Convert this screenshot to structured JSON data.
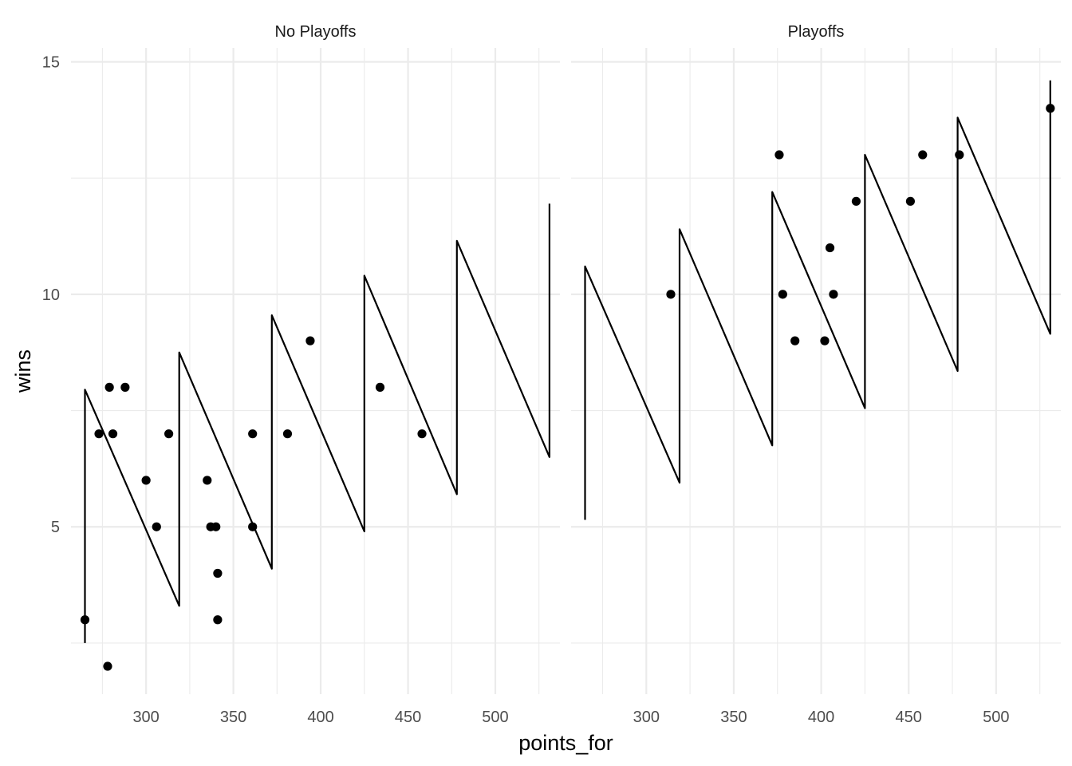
{
  "chart_data": {
    "type": "scatter",
    "xlabel": "points_for",
    "ylabel": "wins",
    "xlim": [
      257,
      537
    ],
    "ylim": [
      1.4,
      15.3
    ],
    "x_major_ticks": [
      300,
      350,
      400,
      450,
      500
    ],
    "x_minor_ticks": [
      275,
      325,
      375,
      425,
      475,
      525
    ],
    "y_major_ticks": [
      5,
      10,
      15
    ],
    "y_minor_ticks": [
      2.5,
      7.5,
      12.5
    ],
    "x_tick_labels": [
      "300",
      "350",
      "400",
      "450",
      "500"
    ],
    "y_tick_labels": [
      "5",
      "10",
      "15"
    ],
    "grid": true,
    "panels": [
      {
        "label": "No Playoffs",
        "points": [
          {
            "x": 265,
            "y": 3
          },
          {
            "x": 273,
            "y": 7
          },
          {
            "x": 278,
            "y": 2
          },
          {
            "x": 279,
            "y": 8
          },
          {
            "x": 281,
            "y": 7
          },
          {
            "x": 288,
            "y": 8
          },
          {
            "x": 300,
            "y": 6
          },
          {
            "x": 306,
            "y": 5
          },
          {
            "x": 313,
            "y": 7
          },
          {
            "x": 335,
            "y": 6
          },
          {
            "x": 337,
            "y": 5
          },
          {
            "x": 340,
            "y": 5
          },
          {
            "x": 341,
            "y": 4
          },
          {
            "x": 341,
            "y": 3
          },
          {
            "x": 361,
            "y": 7
          },
          {
            "x": 361,
            "y": 5
          },
          {
            "x": 381,
            "y": 7
          },
          {
            "x": 394,
            "y": 9
          },
          {
            "x": 434,
            "y": 8
          },
          {
            "x": 458,
            "y": 7
          }
        ],
        "line": [
          {
            "x": 265,
            "y": 2.5
          },
          {
            "x": 265,
            "y": 7.95
          },
          {
            "x": 319,
            "y": 3.3
          },
          {
            "x": 319,
            "y": 8.75
          },
          {
            "x": 372,
            "y": 4.1
          },
          {
            "x": 372,
            "y": 9.55
          },
          {
            "x": 425,
            "y": 4.9
          },
          {
            "x": 425,
            "y": 10.4
          },
          {
            "x": 478,
            "y": 5.7
          },
          {
            "x": 478,
            "y": 11.15
          },
          {
            "x": 531,
            "y": 6.5
          },
          {
            "x": 531,
            "y": 11.95
          }
        ]
      },
      {
        "label": "Playoffs",
        "points": [
          {
            "x": 314,
            "y": 10
          },
          {
            "x": 376,
            "y": 13
          },
          {
            "x": 378,
            "y": 10
          },
          {
            "x": 385,
            "y": 9
          },
          {
            "x": 402,
            "y": 9
          },
          {
            "x": 405,
            "y": 11
          },
          {
            "x": 407,
            "y": 10
          },
          {
            "x": 420,
            "y": 12
          },
          {
            "x": 451,
            "y": 12
          },
          {
            "x": 458,
            "y": 13
          },
          {
            "x": 479,
            "y": 13
          },
          {
            "x": 531,
            "y": 14
          }
        ],
        "line": [
          {
            "x": 265,
            "y": 5.15
          },
          {
            "x": 265,
            "y": 10.6
          },
          {
            "x": 319,
            "y": 5.95
          },
          {
            "x": 319,
            "y": 11.4
          },
          {
            "x": 372,
            "y": 6.75
          },
          {
            "x": 372,
            "y": 12.2
          },
          {
            "x": 425,
            "y": 7.55
          },
          {
            "x": 425,
            "y": 13.0
          },
          {
            "x": 478,
            "y": 8.35
          },
          {
            "x": 478,
            "y": 13.8
          },
          {
            "x": 531,
            "y": 9.15
          },
          {
            "x": 531,
            "y": 14.6
          }
        ]
      }
    ]
  }
}
